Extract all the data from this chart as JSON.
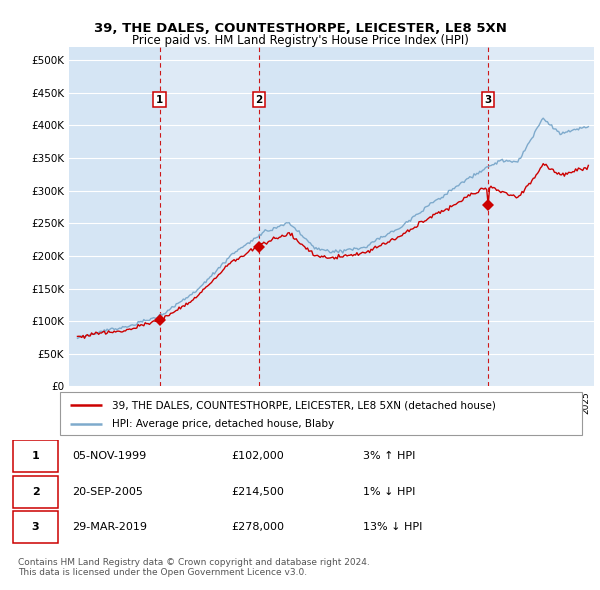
{
  "title": "39, THE DALES, COUNTESTHORPE, LEICESTER, LE8 5XN",
  "subtitle": "Price paid vs. HM Land Registry's House Price Index (HPI)",
  "legend_label_red": "39, THE DALES, COUNTESTHORPE, LEICESTER, LE8 5XN (detached house)",
  "legend_label_blue": "HPI: Average price, detached house, Blaby",
  "sale_points": [
    {
      "label": "1",
      "date_str": "05-NOV-1999",
      "price": 102000,
      "hpi_diff": "3% ↑ HPI",
      "x_year": 1999.85
    },
    {
      "label": "2",
      "date_str": "20-SEP-2005",
      "price": 214500,
      "hpi_diff": "1% ↓ HPI",
      "x_year": 2005.72
    },
    {
      "label": "3",
      "date_str": "29-MAR-2019",
      "price": 278000,
      "hpi_diff": "13% ↓ HPI",
      "x_year": 2019.24
    }
  ],
  "footer": "Contains HM Land Registry data © Crown copyright and database right 2024.\nThis data is licensed under the Open Government Licence v3.0.",
  "ylim": [
    0,
    520000
  ],
  "yticks": [
    0,
    50000,
    100000,
    150000,
    200000,
    250000,
    300000,
    350000,
    400000,
    450000,
    500000
  ],
  "ytick_labels": [
    "£0",
    "£50K",
    "£100K",
    "£150K",
    "£200K",
    "£250K",
    "£300K",
    "£350K",
    "£400K",
    "£450K",
    "£500K"
  ],
  "xlim_start": 1994.5,
  "xlim_end": 2025.5,
  "plot_bg_color": "#dce8f5",
  "red_color": "#cc0000",
  "blue_color": "#7eaacc",
  "vline_color": "#cc0000",
  "grid_color": "#ffffff",
  "shade_colors": [
    "#d0e4f4",
    "#e0edf8"
  ]
}
